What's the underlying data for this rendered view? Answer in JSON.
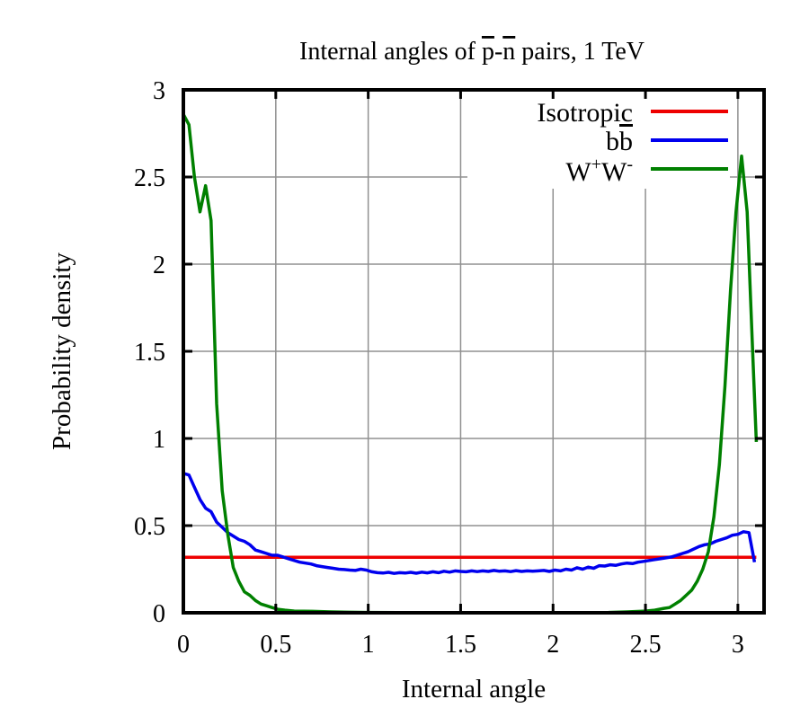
{
  "chart_data": {
    "type": "line",
    "title_parts": {
      "before": "Internal angles of ",
      "p": "p",
      "dash": "-",
      "n": "n",
      "after": " pairs, 1 TeV"
    },
    "xlabel": "Internal angle",
    "ylabel": "Probability density",
    "xlim": [
      0,
      3.1416
    ],
    "ylim": [
      0,
      3
    ],
    "x_ticks": [
      0,
      0.5,
      1,
      1.5,
      2,
      2.5,
      3
    ],
    "x_tick_labels": [
      "0",
      "0.5",
      "1",
      "1.5",
      "2",
      "2.5",
      "3"
    ],
    "y_ticks": [
      0,
      0.5,
      1,
      1.5,
      2,
      2.5,
      3
    ],
    "y_tick_labels": [
      "0",
      "0.5",
      "1",
      "1.5",
      "2",
      "2.5",
      "3"
    ],
    "grid": true,
    "legend_position": "top-right",
    "legend": {
      "isotropic": "Isotropic",
      "bb_b": "b",
      "bb_bbar": "b",
      "ww_w1": "W",
      "ww_plus": "+",
      "ww_w2": "W",
      "ww_minus": "-"
    },
    "colors": {
      "isotropic": "#ee0000",
      "bb": "#0000ee",
      "ww": "#008000",
      "grid": "#909090",
      "axis": "#000000"
    },
    "series": [
      {
        "name": "Isotropic",
        "key": "isotropic",
        "x": [
          0,
          3.1
        ],
        "y": [
          0.318,
          0.318
        ]
      },
      {
        "name": "bb",
        "key": "bb",
        "x": [
          0,
          0.03,
          0.06,
          0.09,
          0.12,
          0.15,
          0.18,
          0.21,
          0.24,
          0.27,
          0.3,
          0.33,
          0.36,
          0.39,
          0.42,
          0.45,
          0.48,
          0.51,
          0.54,
          0.57,
          0.6,
          0.63,
          0.66,
          0.69,
          0.72,
          0.75,
          0.78,
          0.81,
          0.84,
          0.87,
          0.9,
          0.93,
          0.96,
          0.99,
          1.02,
          1.05,
          1.08,
          1.11,
          1.14,
          1.17,
          1.2,
          1.23,
          1.26,
          1.29,
          1.32,
          1.35,
          1.38,
          1.41,
          1.44,
          1.47,
          1.5,
          1.53,
          1.56,
          1.59,
          1.62,
          1.65,
          1.68,
          1.71,
          1.74,
          1.77,
          1.8,
          1.83,
          1.86,
          1.89,
          1.92,
          1.95,
          1.98,
          2.01,
          2.04,
          2.07,
          2.1,
          2.13,
          2.16,
          2.19,
          2.22,
          2.25,
          2.28,
          2.31,
          2.34,
          2.37,
          2.4,
          2.43,
          2.46,
          2.49,
          2.52,
          2.55,
          2.58,
          2.61,
          2.64,
          2.67,
          2.7,
          2.73,
          2.76,
          2.79,
          2.82,
          2.85,
          2.88,
          2.91,
          2.94,
          2.97,
          3.0,
          3.03,
          3.06,
          3.09
        ],
        "y": [
          0.8,
          0.79,
          0.72,
          0.65,
          0.6,
          0.58,
          0.52,
          0.49,
          0.46,
          0.44,
          0.42,
          0.41,
          0.39,
          0.36,
          0.35,
          0.34,
          0.33,
          0.33,
          0.32,
          0.31,
          0.3,
          0.29,
          0.285,
          0.28,
          0.27,
          0.265,
          0.26,
          0.255,
          0.25,
          0.248,
          0.245,
          0.243,
          0.25,
          0.245,
          0.235,
          0.23,
          0.228,
          0.232,
          0.226,
          0.23,
          0.228,
          0.232,
          0.227,
          0.233,
          0.229,
          0.235,
          0.23,
          0.238,
          0.233,
          0.24,
          0.237,
          0.235,
          0.24,
          0.236,
          0.24,
          0.237,
          0.243,
          0.238,
          0.24,
          0.236,
          0.242,
          0.237,
          0.24,
          0.238,
          0.24,
          0.243,
          0.237,
          0.245,
          0.24,
          0.25,
          0.245,
          0.258,
          0.25,
          0.262,
          0.255,
          0.27,
          0.268,
          0.275,
          0.272,
          0.28,
          0.285,
          0.282,
          0.29,
          0.295,
          0.3,
          0.305,
          0.31,
          0.315,
          0.32,
          0.33,
          0.34,
          0.35,
          0.365,
          0.38,
          0.39,
          0.395,
          0.41,
          0.42,
          0.43,
          0.445,
          0.45,
          0.465,
          0.46,
          0.29
        ]
      },
      {
        "name": "WW",
        "key": "ww",
        "x": [
          0,
          0.03,
          0.06,
          0.09,
          0.12,
          0.15,
          0.18,
          0.21,
          0.24,
          0.27,
          0.3,
          0.33,
          0.36,
          0.39,
          0.42,
          0.45,
          0.48,
          0.51,
          0.55,
          0.6,
          0.7,
          0.8,
          0.9,
          1.0,
          1.5,
          2.0,
          2.3,
          2.4,
          2.5,
          2.55,
          2.6,
          2.63,
          2.66,
          2.69,
          2.72,
          2.75,
          2.78,
          2.81,
          2.84,
          2.87,
          2.9,
          2.93,
          2.96,
          2.99,
          3.02,
          3.05,
          3.08,
          3.1
        ],
        "y": [
          2.86,
          2.8,
          2.5,
          2.3,
          2.45,
          2.25,
          1.2,
          0.7,
          0.45,
          0.26,
          0.18,
          0.12,
          0.1,
          0.07,
          0.05,
          0.04,
          0.03,
          0.02,
          0.015,
          0.01,
          0.008,
          0.005,
          0.003,
          0.002,
          0.0,
          0.0,
          0.002,
          0.005,
          0.01,
          0.015,
          0.025,
          0.03,
          0.05,
          0.07,
          0.1,
          0.13,
          0.18,
          0.25,
          0.35,
          0.55,
          0.85,
          1.3,
          1.85,
          2.3,
          2.62,
          2.3,
          1.5,
          0.98
        ]
      }
    ]
  }
}
